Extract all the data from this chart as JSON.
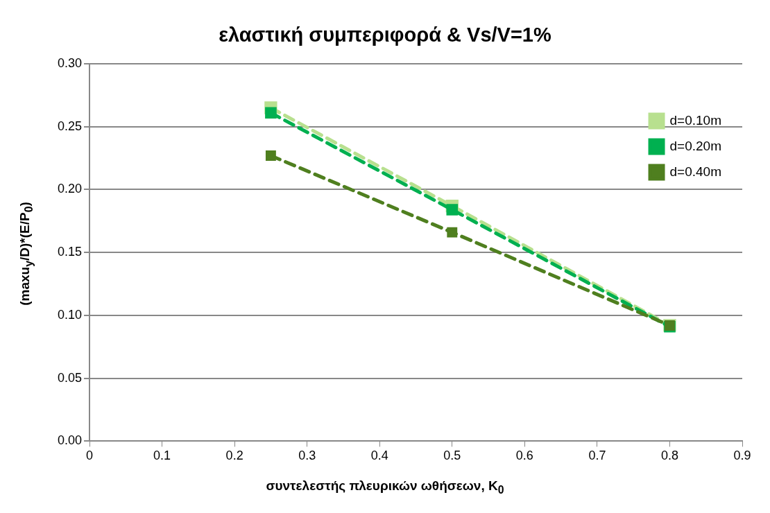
{
  "chart_data": {
    "type": "line",
    "title": "ελαστική συμπεριφορά & Vs/V=1%",
    "xlabel": "συντελεστής πλευρικών ωθήσεων, K$_{0}$",
    "ylabel": "(maxu$_{y}$/D)*(E/P$_{0}$)",
    "x": [
      0.25,
      0.5,
      0.8
    ],
    "series": [
      {
        "name": "d=0.10m",
        "color": "#b8e08f",
        "values": [
          0.265,
          0.187,
          0.092
        ]
      },
      {
        "name": "d=0.20m",
        "color": "#00b050",
        "values": [
          0.261,
          0.184,
          0.091
        ]
      },
      {
        "name": "d=0.40m",
        "color": "#4f7f1f",
        "values": [
          0.227,
          0.166,
          0.092
        ]
      }
    ],
    "xlim": [
      0,
      0.9
    ],
    "xticks": [
      0,
      0.1,
      0.2,
      0.3,
      0.4,
      0.5,
      0.6,
      0.7,
      0.8,
      0.9
    ],
    "ylim": [
      0,
      0.3
    ],
    "yticks": [
      {
        "value": 0,
        "label": "0.00"
      },
      {
        "value": 0.05,
        "label": "0.05"
      },
      {
        "value": 0.1,
        "label": "0.10"
      },
      {
        "value": 0.15,
        "label": "0.15"
      },
      {
        "value": 0.2,
        "label": "0.20"
      },
      {
        "value": 0.25,
        "label": "0.25"
      },
      {
        "value": 0.3,
        "label": "0.30"
      }
    ],
    "grid": "y",
    "legend": "top right",
    "marker": "square",
    "line_style": "dashed"
  }
}
